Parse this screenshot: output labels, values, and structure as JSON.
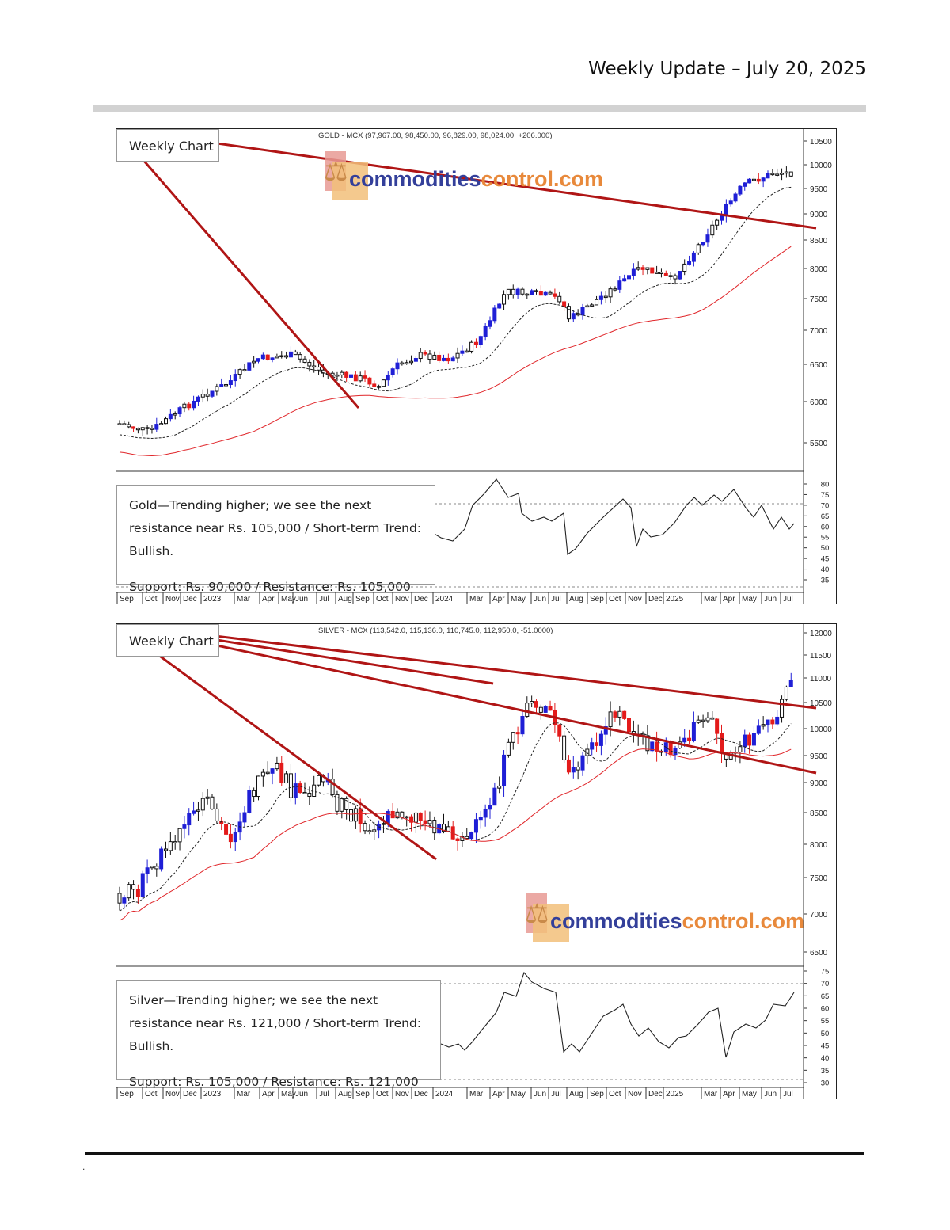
{
  "header": {
    "title": "Weekly Update – July 20, 2025"
  },
  "footer": {
    "mark": "."
  },
  "watermark": {
    "part1": "commodities",
    "part2": "control.com"
  },
  "gold": {
    "label": "Weekly Chart",
    "ohlc_title": "GOLD - MCX (97,967.00, 98,450.00, 96,829.00, 98,024.00, +206.000)",
    "commentary": "Gold—Trending higher; we see the next resistance near Rs. 105,000 / Short-term Trend: Bullish.",
    "support_resistance": "Support: Rs. 90,000 / Resistance: Rs. 105,000",
    "price_ticks": [
      "10500",
      "10000",
      "9500",
      "9000",
      "8500",
      "8000",
      "7500",
      "7000",
      "6500",
      "6000",
      "5500"
    ],
    "indicator_ticks": [
      "80",
      "75",
      "70",
      "65",
      "60",
      "55",
      "50",
      "45",
      "40",
      "35"
    ],
    "x_labels": [
      "Sep",
      "Oct",
      "Nov",
      "Dec",
      "2023",
      "Mar",
      "Apr",
      "May",
      "Jun",
      "Jul",
      "Aug",
      "Sep",
      "Oct",
      "Nov",
      "Dec",
      "2024",
      "Mar",
      "Apr",
      "May",
      "Jun",
      "Jul",
      "Aug",
      "Sep",
      "Oct",
      "Nov",
      "Dec",
      "2025",
      "Mar",
      "Apr",
      "May",
      "Jun",
      "Jul"
    ]
  },
  "silver": {
    "label": "Weekly Chart",
    "ohlc_title": "SILVER - MCX (113,542.0, 115,136.0, 110,745.0, 112,950.0, -51.0000)",
    "commentary": "Silver—Trending higher; we see the next resistance near Rs. 121,000 / Short-term Trend: Bullish.",
    "support_resistance": "Support: Rs. 105,000 / Resistance: Rs. 121,000",
    "price_ticks": [
      "12000",
      "11500",
      "11000",
      "10500",
      "10000",
      "9500",
      "9000",
      "8500",
      "8000",
      "7500",
      "7000",
      "6500"
    ],
    "indicator_ticks": [
      "75",
      "70",
      "65",
      "60",
      "55",
      "50",
      "45",
      "40",
      "35",
      "30"
    ],
    "x_labels": [
      "Sep",
      "Oct",
      "Nov",
      "Dec",
      "2023",
      "Mar",
      "Apr",
      "May",
      "Jun",
      "Jul",
      "Aug",
      "Sep",
      "Oct",
      "Nov",
      "Dec",
      "2024",
      "Mar",
      "Apr",
      "May",
      "Jun",
      "Jul",
      "Aug",
      "Sep",
      "Oct",
      "Nov",
      "Dec",
      "2025",
      "Mar",
      "Apr",
      "May",
      "Jun",
      "Jul"
    ]
  },
  "colors": {
    "up": "#1f1fd6",
    "down": "#e31b1b",
    "neutral": "#111111",
    "trendline": "#b01515",
    "ma_slow": "#e0262a",
    "ma_fast": "#222222"
  }
}
